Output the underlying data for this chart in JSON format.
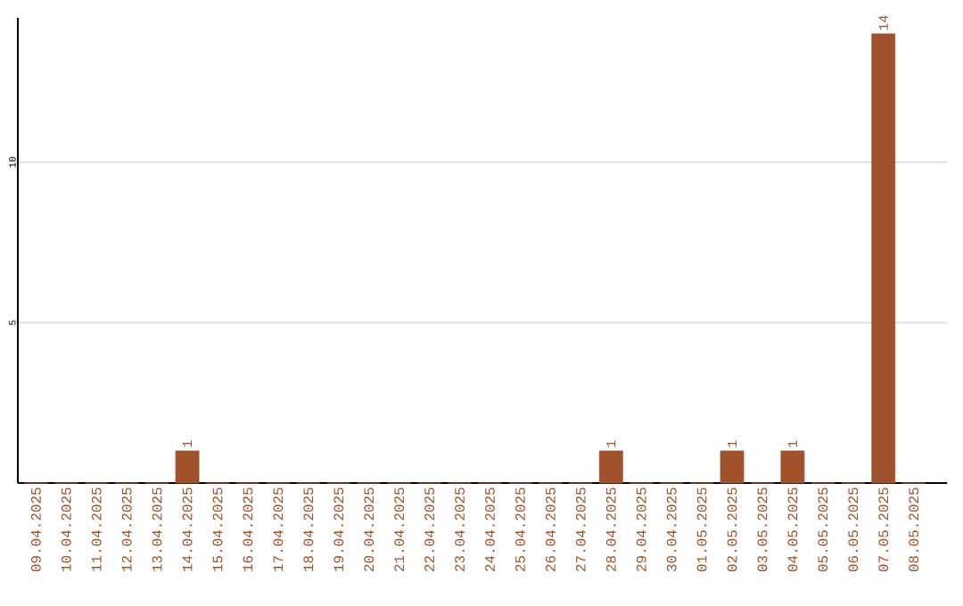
{
  "chart_data": {
    "type": "bar",
    "categories": [
      "09.04.2025",
      "10.04.2025",
      "11.04.2025",
      "12.04.2025",
      "13.04.2025",
      "14.04.2025",
      "15.04.2025",
      "16.04.2025",
      "17.04.2025",
      "18.04.2025",
      "19.04.2025",
      "20.04.2025",
      "21.04.2025",
      "22.04.2025",
      "23.04.2025",
      "24.04.2025",
      "25.04.2025",
      "26.04.2025",
      "27.04.2025",
      "28.04.2025",
      "29.04.2025",
      "30.04.2025",
      "01.05.2025",
      "02.05.2025",
      "03.05.2025",
      "04.05.2025",
      "05.05.2025",
      "06.05.2025",
      "07.05.2025",
      "08.05.2025"
    ],
    "values": [
      0,
      0,
      0,
      0,
      0,
      1,
      0,
      0,
      0,
      0,
      0,
      0,
      0,
      0,
      0,
      0,
      0,
      0,
      0,
      1,
      0,
      0,
      0,
      1,
      0,
      1,
      0,
      0,
      14,
      0
    ],
    "value_labels": [
      null,
      null,
      null,
      null,
      null,
      "1",
      null,
      null,
      null,
      null,
      null,
      null,
      null,
      null,
      null,
      null,
      null,
      null,
      null,
      "1",
      null,
      null,
      null,
      "1",
      null,
      "1",
      null,
      null,
      "14",
      null
    ],
    "color": "#a0522d",
    "ylim": [
      0,
      14.5
    ],
    "yticks": [
      5,
      10
    ],
    "grid": "y"
  }
}
